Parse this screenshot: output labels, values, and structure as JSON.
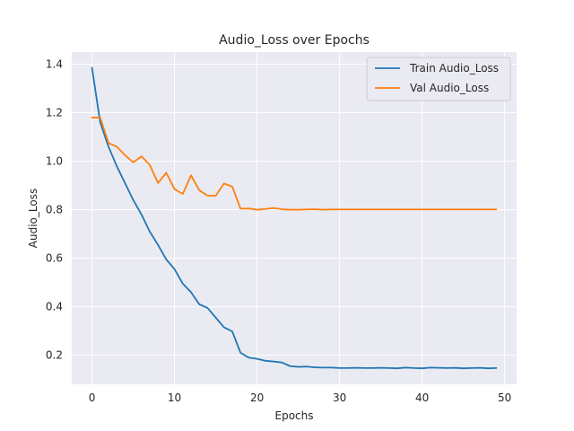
{
  "chart_data": {
    "type": "line",
    "title": "Audio_Loss over Epochs",
    "xlabel": "Epochs",
    "ylabel": "Audio_Loss",
    "xlim": [
      -2.45,
      51.45
    ],
    "ylim": [
      0.08,
      1.45
    ],
    "x_ticks": [
      0,
      10,
      20,
      30,
      40,
      50
    ],
    "y_ticks": [
      0.2,
      0.4,
      0.6,
      0.8,
      1.0,
      1.2,
      1.4
    ],
    "x_tick_labels": [
      "0",
      "10",
      "20",
      "30",
      "40",
      "50"
    ],
    "y_tick_labels": [
      "0.2",
      "0.4",
      "0.6",
      "0.8",
      "1.0",
      "1.2",
      "1.4"
    ],
    "grid": true,
    "legend_position": "top-right",
    "x": [
      0,
      1,
      2,
      3,
      4,
      5,
      6,
      7,
      8,
      9,
      10,
      11,
      12,
      13,
      14,
      15,
      16,
      17,
      18,
      19,
      20,
      21,
      22,
      23,
      24,
      25,
      26,
      27,
      28,
      29,
      30,
      31,
      32,
      33,
      34,
      35,
      36,
      37,
      38,
      39,
      40,
      41,
      42,
      43,
      44,
      45,
      46,
      47,
      48,
      49
    ],
    "series": [
      {
        "name": "Train Audio_Loss",
        "color": "#1f77b4",
        "values": [
          1.385,
          1.16,
          1.06,
          0.98,
          0.91,
          0.84,
          0.78,
          0.71,
          0.655,
          0.595,
          0.555,
          0.495,
          0.46,
          0.41,
          0.395,
          0.355,
          0.315,
          0.298,
          0.21,
          0.19,
          0.185,
          0.177,
          0.174,
          0.17,
          0.155,
          0.152,
          0.153,
          0.15,
          0.149,
          0.149,
          0.147,
          0.147,
          0.148,
          0.147,
          0.147,
          0.148,
          0.147,
          0.146,
          0.149,
          0.147,
          0.146,
          0.149,
          0.148,
          0.147,
          0.148,
          0.146,
          0.147,
          0.148,
          0.146,
          0.147
        ]
      },
      {
        "name": "Val Audio_Loss",
        "color": "#ff7f0e",
        "values": [
          1.18,
          1.18,
          1.075,
          1.06,
          1.025,
          0.995,
          1.02,
          0.985,
          0.91,
          0.952,
          0.885,
          0.865,
          0.942,
          0.88,
          0.858,
          0.858,
          0.908,
          0.895,
          0.804,
          0.805,
          0.8,
          0.803,
          0.807,
          0.802,
          0.8,
          0.8,
          0.801,
          0.802,
          0.8,
          0.801,
          0.801,
          0.801,
          0.801,
          0.801,
          0.801,
          0.801,
          0.801,
          0.801,
          0.801,
          0.801,
          0.801,
          0.801,
          0.801,
          0.801,
          0.801,
          0.801,
          0.801,
          0.801,
          0.801,
          0.801
        ]
      }
    ]
  }
}
